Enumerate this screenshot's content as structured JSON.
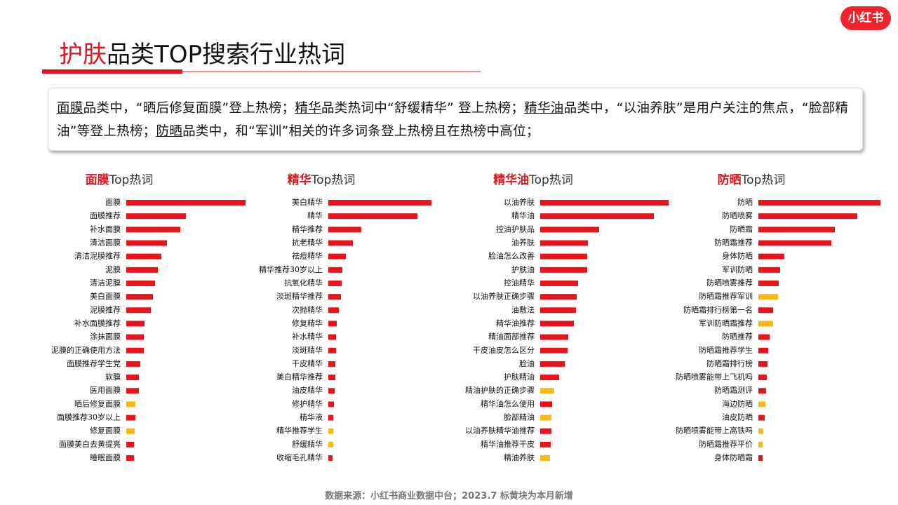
{
  "header": {
    "title_highlight": "护肤",
    "title": "品类TOP搜索行业热词",
    "logo": "小红书"
  },
  "summary": [
    {
      "text": "面膜",
      "underline": true
    },
    {
      "text": "品类中，“晒后修复面膜”登上热榜；",
      "underline": false
    },
    {
      "text": "精华",
      "underline": true
    },
    {
      "text": "品类热词中“舒缓精华” 登上热榜；",
      "underline": false
    },
    {
      "text": "精华油",
      "underline": true
    },
    {
      "text": "品类中，“以油养肤”是用户关注的焦点，“脸部精油”等登上热榜；",
      "underline": false
    },
    {
      "text": "防晒",
      "underline": true
    },
    {
      "text": "品类中，和“军训”相关的许多词条登上热榜且在热榜中高位；",
      "underline": false
    }
  ],
  "footer": "数据来源：小红书商业数据中台；2023.7 标黄块为本月新增",
  "chart_data": [
    {
      "type": "bar",
      "title_highlight": "面膜",
      "title": "Top热词",
      "xlim": [
        0,
        200
      ],
      "categories": [
        "面膜",
        "面膜推荐",
        "补水面膜",
        "清洁面膜",
        "清洁泥膜推荐",
        "泥膜",
        "清洁泥膜",
        "美白面膜",
        "泥膜推荐",
        "补水面膜推荐",
        "涂抹面膜",
        "泥膜的正确使用方法",
        "面膜推荐学生党",
        "软膜",
        "医用面膜",
        "晒后修复面膜",
        "面膜推荐30岁以上",
        "修复面膜",
        "面膜美白去黄提亮",
        "睡眠面膜"
      ],
      "values": [
        170,
        85,
        77,
        58,
        50,
        45,
        41,
        38,
        35,
        26,
        25,
        25,
        20,
        18,
        18,
        13,
        13,
        12,
        11,
        11
      ],
      "colors": [
        "#e8131b",
        "#e8131b",
        "#e8131b",
        "#e8131b",
        "#e8131b",
        "#e8131b",
        "#e8131b",
        "#e8131b",
        "#e8131b",
        "#e8131b",
        "#e8131b",
        "#e8131b",
        "#e8131b",
        "#e8131b",
        "#e8131b",
        "#f6b915",
        "#e8131b",
        "#f6b915",
        "#e8131b",
        "#e8131b"
      ]
    },
    {
      "type": "bar",
      "title_highlight": "精华",
      "title": "Top热词",
      "xlim": [
        0,
        200
      ],
      "categories": [
        "美白精华",
        "精华",
        "精华推荐",
        "抗老精华",
        "祛痘精华",
        "精华推荐30岁以上",
        "抗氧化精华",
        "淡斑精华推荐",
        "次抛精华",
        "修复精华",
        "补水精华",
        "淡斑精华",
        "干皮精华",
        "美白精华推荐",
        "油皮精华",
        "修护精华",
        "精华液",
        "精华推荐学生",
        "舒缓精华",
        "收缩毛孔精华"
      ],
      "values": [
        147,
        127,
        47,
        35,
        25,
        20,
        19,
        18,
        15,
        12,
        11,
        11,
        10,
        10,
        9,
        8,
        7,
        7,
        7,
        6
      ],
      "colors": [
        "#e8131b",
        "#e8131b",
        "#e8131b",
        "#e8131b",
        "#e8131b",
        "#e8131b",
        "#e8131b",
        "#e8131b",
        "#e8131b",
        "#e8131b",
        "#e8131b",
        "#e8131b",
        "#e8131b",
        "#e8131b",
        "#e8131b",
        "#e8131b",
        "#e8131b",
        "#f6b915",
        "#f6b915",
        "#e8131b"
      ]
    },
    {
      "type": "bar",
      "title_highlight": "精华油",
      "title": "Top热词",
      "xlim": [
        0,
        200
      ],
      "categories": [
        "以油养肤",
        "精华油",
        "控油护肤品",
        "油养肤",
        "脸油怎么改善",
        "护肤油",
        "控油精华",
        "以油养肤正确步骤",
        "油敷法",
        "精华油推荐",
        "精油面部推荐",
        "干皮油皮怎么区分",
        "脸油",
        "护肤精油",
        "精油护肤的正确步骤",
        "精华油怎么使用",
        "脸部精油",
        "以油养肤精华油推荐",
        "精华油推荐干皮",
        "精油养肤"
      ],
      "values": [
        183,
        162,
        84,
        68,
        67,
        67,
        54,
        52,
        51,
        48,
        40,
        39,
        35,
        27,
        20,
        17,
        16,
        16,
        15,
        14
      ],
      "colors": [
        "#e8131b",
        "#e8131b",
        "#e8131b",
        "#e8131b",
        "#e8131b",
        "#e8131b",
        "#e8131b",
        "#e8131b",
        "#e8131b",
        "#e8131b",
        "#e8131b",
        "#e8131b",
        "#e8131b",
        "#e8131b",
        "#f6b915",
        "#e8131b",
        "#f6b915",
        "#e8131b",
        "#e8131b",
        "#f6b915"
      ]
    },
    {
      "type": "bar",
      "title_highlight": "防晒",
      "title": "Top热词",
      "xlim": [
        0,
        200
      ],
      "categories": [
        "防晒",
        "防晒喷雾",
        "防晒霜",
        "防晒霜推荐",
        "身体防晒",
        "军训防晒",
        "防晒喷雾推荐",
        "防晒霜推荐军训",
        "防晒霜排行榜第一名",
        "军训防晒霜推荐",
        "防晒推荐",
        "防晒霜推荐学生",
        "防晒霜排行榜",
        "防晒喷雾能带上飞机吗",
        "防晒霜测评",
        "海边防晒",
        "油皮防晒",
        "防晒喷雾能带上高铁吗",
        "防晒霜推荐平价",
        "身体防晒霜"
      ],
      "values": [
        174,
        141,
        109,
        104,
        37,
        31,
        29,
        28,
        21,
        21,
        16,
        14,
        13,
        12,
        11,
        10,
        9,
        7,
        6,
        6
      ],
      "colors": [
        "#e8131b",
        "#e8131b",
        "#e8131b",
        "#e8131b",
        "#e8131b",
        "#e8131b",
        "#e8131b",
        "#f6b915",
        "#e8131b",
        "#f6b915",
        "#e8131b",
        "#e8131b",
        "#e8131b",
        "#e8131b",
        "#e8131b",
        "#f6b915",
        "#e8131b",
        "#f6b915",
        "#f6b915",
        "#e8131b"
      ]
    }
  ]
}
